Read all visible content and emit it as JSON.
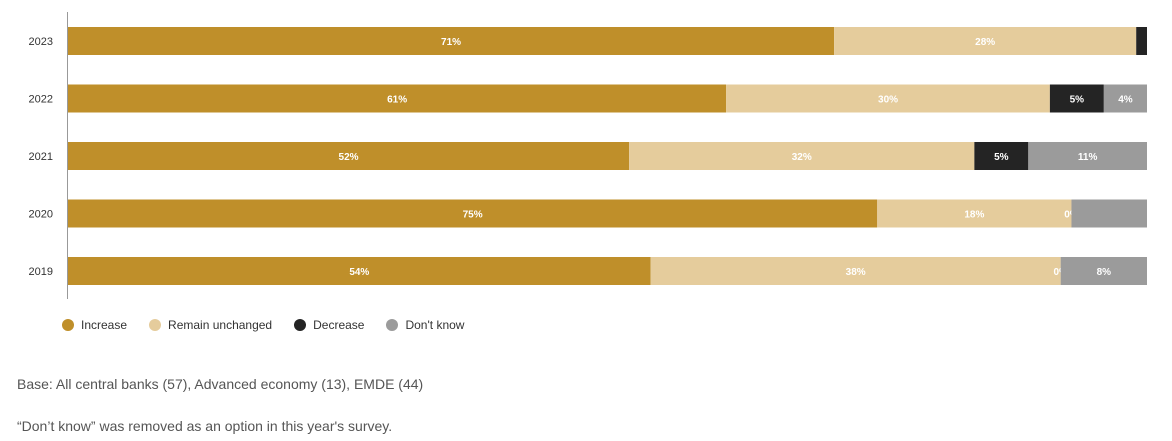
{
  "chart_data": {
    "type": "bar",
    "orientation": "horizontal",
    "stacked": true,
    "categories": [
      "2023",
      "2022",
      "2021",
      "2020",
      "2019"
    ],
    "series": [
      {
        "name": "Increase",
        "color": "#bf8f2a",
        "values": [
          71,
          61,
          52,
          75,
          54
        ],
        "labels": [
          "71%",
          "61%",
          "52%",
          "75%",
          "54%"
        ]
      },
      {
        "name": "Remain unchanged",
        "color": "#e5cc9c",
        "values": [
          28,
          30,
          32,
          18,
          38
        ],
        "labels": [
          "28%",
          "30%",
          "32%",
          "18%",
          "38%"
        ]
      },
      {
        "name": "Decrease",
        "color": "#242424",
        "values": [
          1,
          5,
          5,
          0,
          0
        ],
        "labels": [
          "",
          "5%",
          "5%",
          "0%",
          "0%"
        ]
      },
      {
        "name": "Don't know",
        "color": "#9b9b9b",
        "values": [
          0,
          4,
          11,
          7,
          8
        ],
        "labels": [
          "",
          "4%",
          "11%",
          "",
          "8%"
        ]
      }
    ],
    "xlim": [
      0,
      100
    ],
    "grid": false,
    "legend_position": "bottom-left"
  },
  "notes": [
    "Base: All central banks (57), Advanced economy (13), EMDE (44)",
    "“Don’t know” was removed as an option in this year's survey."
  ]
}
